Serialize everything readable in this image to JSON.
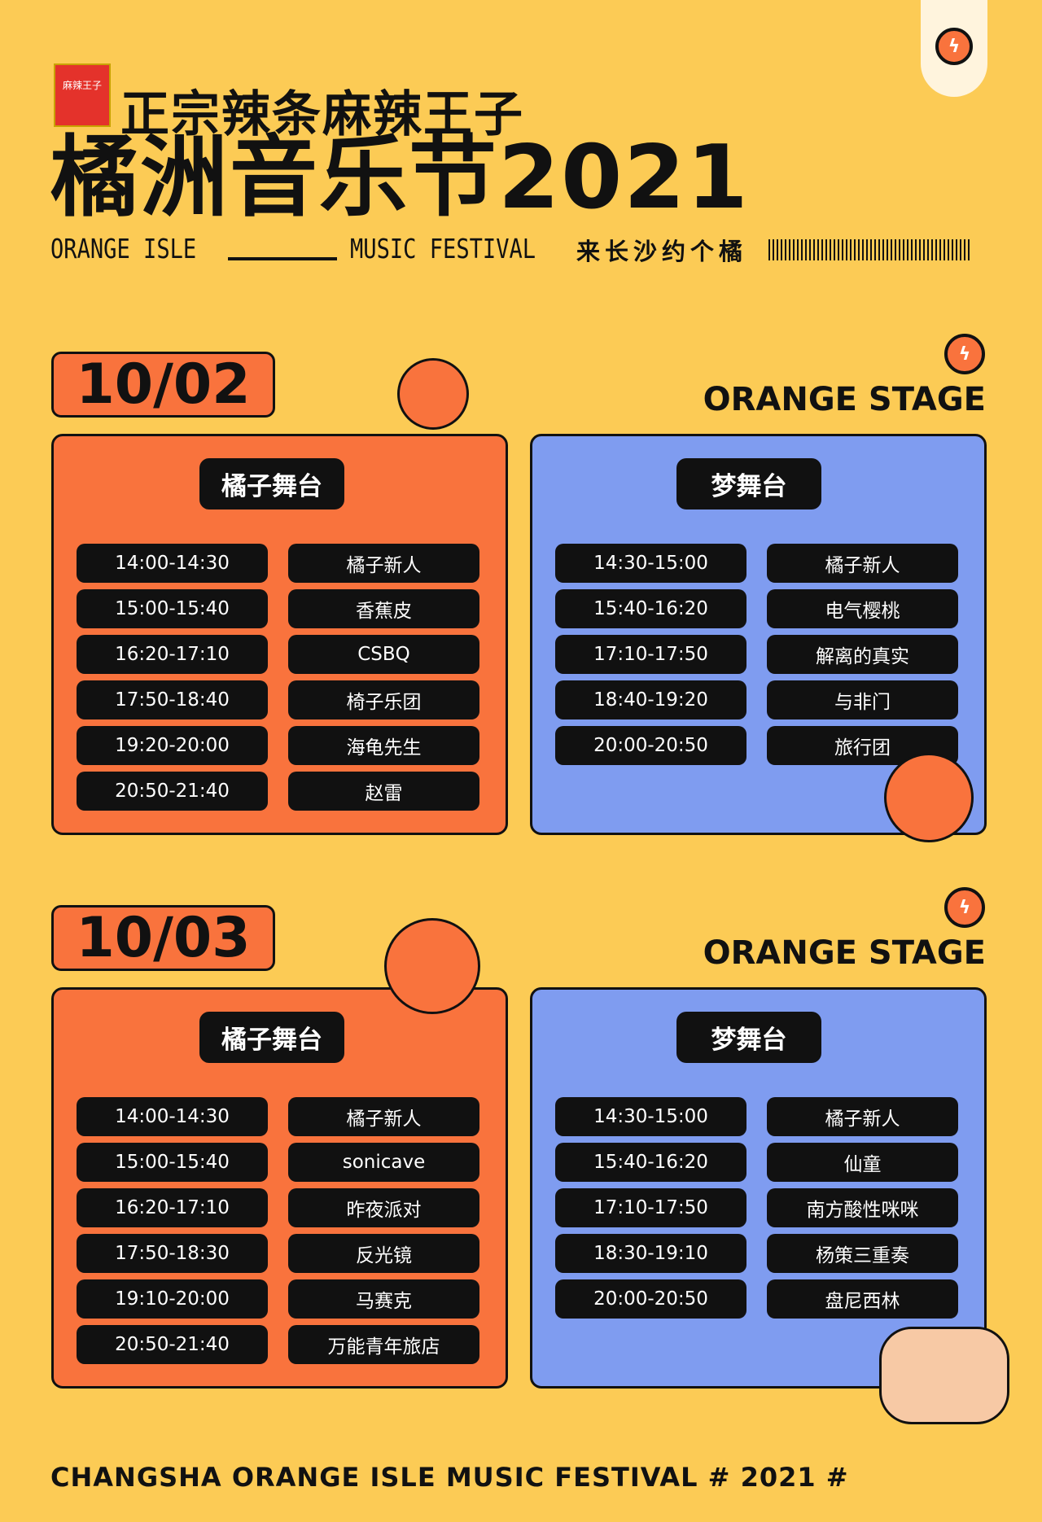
{
  "header": {
    "sponsor": "正宗辣条麻辣王子",
    "sponsor_pack": "麻辣王子",
    "title": "橘洲音乐节2021",
    "sub_left": "ORANGE ISLE",
    "sub_right": "MUSIC FESTIVAL",
    "slogan": "来长沙约个橘"
  },
  "colors": {
    "background": "#FCCB55",
    "orange": "#F9733D",
    "blue": "#7F9CF0"
  },
  "days": [
    {
      "date": "10/02",
      "stage_label": "ORANGE STAGE",
      "stages": [
        {
          "name": "橘子舞台",
          "rows": [
            [
              "14:00-14:30",
              "橘子新人"
            ],
            [
              "15:00-15:40",
              "香蕉皮"
            ],
            [
              "16:20-17:10",
              "CSBQ"
            ],
            [
              "17:50-18:40",
              "椅子乐团"
            ],
            [
              "19:20-20:00",
              "海龟先生"
            ],
            [
              "20:50-21:40",
              "赵雷"
            ]
          ]
        },
        {
          "name": "梦舞台",
          "rows": [
            [
              "14:30-15:00",
              "橘子新人"
            ],
            [
              "15:40-16:20",
              "电气樱桃"
            ],
            [
              "17:10-17:50",
              "解离的真实"
            ],
            [
              "18:40-19:20",
              "与非门"
            ],
            [
              "20:00-20:50",
              "旅行团"
            ]
          ]
        }
      ]
    },
    {
      "date": "10/03",
      "stage_label": "ORANGE STAGE",
      "stages": [
        {
          "name": "橘子舞台",
          "rows": [
            [
              "14:00-14:30",
              "橘子新人"
            ],
            [
              "15:00-15:40",
              "sonicave"
            ],
            [
              "16:20-17:10",
              "昨夜派对"
            ],
            [
              "17:50-18:30",
              "反光镜"
            ],
            [
              "19:10-20:00",
              "马赛克"
            ],
            [
              "20:50-21:40",
              "万能青年旅店"
            ]
          ]
        },
        {
          "name": "梦舞台",
          "rows": [
            [
              "14:30-15:00",
              "橘子新人"
            ],
            [
              "15:40-16:20",
              "仙童"
            ],
            [
              "17:10-17:50",
              "南方酸性咪咪"
            ],
            [
              "18:30-19:10",
              "杨策三重奏"
            ],
            [
              "20:00-20:50",
              "盘尼西林"
            ]
          ]
        }
      ]
    }
  ],
  "footer": "CHANGSHA ORANGE ISLE MUSIC FESTIVAL # 2021 #"
}
